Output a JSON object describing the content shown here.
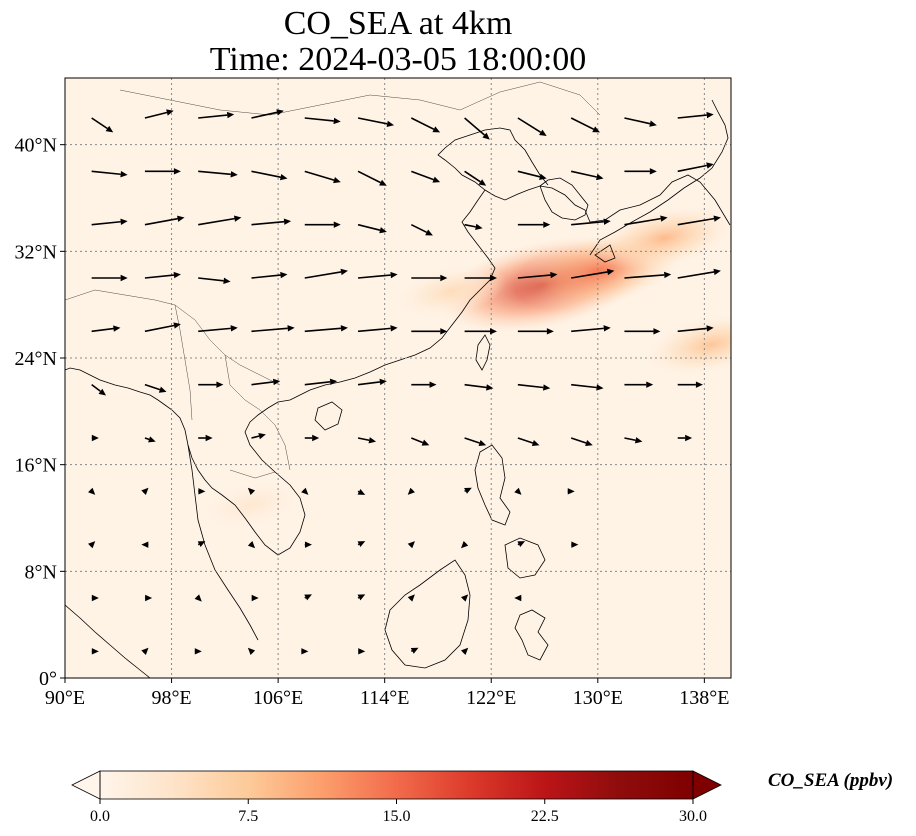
{
  "title": {
    "line1": "CO_SEA at 4km",
    "line2": "Time: 2024-03-05 18:00:00"
  },
  "map": {
    "extent": {
      "lon_min": 90,
      "lon_max": 140,
      "lat_min": 0,
      "lat_max": 45
    },
    "x_ticks": [
      {
        "lon": 90,
        "label": "90°E"
      },
      {
        "lon": 98,
        "label": "98°E"
      },
      {
        "lon": 106,
        "label": "106°E"
      },
      {
        "lon": 114,
        "label": "114°E"
      },
      {
        "lon": 122,
        "label": "122°E"
      },
      {
        "lon": 130,
        "label": "130°E"
      },
      {
        "lon": 138,
        "label": "138°E"
      }
    ],
    "y_ticks": [
      {
        "lat": 0,
        "label": "0°"
      },
      {
        "lat": 8,
        "label": "8°N"
      },
      {
        "lat": 16,
        "label": "16°N"
      },
      {
        "lat": 24,
        "label": "24°N"
      },
      {
        "lat": 32,
        "label": "32°N"
      },
      {
        "lat": 40,
        "label": "40°N"
      }
    ],
    "gridlines": true,
    "field": {
      "background_value": 0.5,
      "plumes": [
        {
          "lon": 126,
          "lat": 29.5,
          "value": 21
        },
        {
          "lon": 130,
          "lat": 30.5,
          "value": 14
        },
        {
          "lon": 135,
          "lat": 33,
          "value": 9
        },
        {
          "lon": 138.5,
          "lat": 25,
          "value": 8
        },
        {
          "lon": 119,
          "lat": 29,
          "value": 5
        },
        {
          "lon": 104,
          "lat": 13,
          "value": 3
        }
      ]
    },
    "wind_vectors": [
      {
        "lon": 92,
        "lat": 42,
        "u": 6,
        "v": -4
      },
      {
        "lon": 96,
        "lat": 42,
        "u": 8,
        "v": 2
      },
      {
        "lon": 100,
        "lat": 42,
        "u": 10,
        "v": 1
      },
      {
        "lon": 104,
        "lat": 42,
        "u": 9,
        "v": 2
      },
      {
        "lon": 108,
        "lat": 42,
        "u": 10,
        "v": -1
      },
      {
        "lon": 112,
        "lat": 42,
        "u": 10,
        "v": -2
      },
      {
        "lon": 116,
        "lat": 42,
        "u": 8,
        "v": -4
      },
      {
        "lon": 120,
        "lat": 42,
        "u": 7,
        "v": -6
      },
      {
        "lon": 124,
        "lat": 42,
        "u": 8,
        "v": -5
      },
      {
        "lon": 128,
        "lat": 42,
        "u": 8,
        "v": -4
      },
      {
        "lon": 132,
        "lat": 42,
        "u": 9,
        "v": -2
      },
      {
        "lon": 136,
        "lat": 42,
        "u": 10,
        "v": 1
      },
      {
        "lon": 92,
        "lat": 38,
        "u": 10,
        "v": -1
      },
      {
        "lon": 96,
        "lat": 38,
        "u": 10,
        "v": 0
      },
      {
        "lon": 100,
        "lat": 38,
        "u": 11,
        "v": -1
      },
      {
        "lon": 104,
        "lat": 38,
        "u": 10,
        "v": -2
      },
      {
        "lon": 108,
        "lat": 38,
        "u": 10,
        "v": -3
      },
      {
        "lon": 112,
        "lat": 38,
        "u": 8,
        "v": -4
      },
      {
        "lon": 116,
        "lat": 38,
        "u": 8,
        "v": -3
      },
      {
        "lon": 120,
        "lat": 38,
        "u": 6,
        "v": -4
      },
      {
        "lon": 124,
        "lat": 38,
        "u": 8,
        "v": -2
      },
      {
        "lon": 128,
        "lat": 38,
        "u": 9,
        "v": -2
      },
      {
        "lon": 132,
        "lat": 38,
        "u": 9,
        "v": 0
      },
      {
        "lon": 136,
        "lat": 38,
        "u": 10,
        "v": 2
      },
      {
        "lon": 92,
        "lat": 34,
        "u": 10,
        "v": 1
      },
      {
        "lon": 96,
        "lat": 34,
        "u": 11,
        "v": 2
      },
      {
        "lon": 100,
        "lat": 34,
        "u": 12,
        "v": 2
      },
      {
        "lon": 104,
        "lat": 34,
        "u": 11,
        "v": 1
      },
      {
        "lon": 108,
        "lat": 34,
        "u": 10,
        "v": 0
      },
      {
        "lon": 112,
        "lat": 34,
        "u": 8,
        "v": -2
      },
      {
        "lon": 116,
        "lat": 34,
        "u": 6,
        "v": -3
      },
      {
        "lon": 120,
        "lat": 34,
        "u": 5,
        "v": -1
      },
      {
        "lon": 124,
        "lat": 34,
        "u": 9,
        "v": 0
      },
      {
        "lon": 128,
        "lat": 34,
        "u": 11,
        "v": 1
      },
      {
        "lon": 132,
        "lat": 34,
        "u": 12,
        "v": 2
      },
      {
        "lon": 136,
        "lat": 34,
        "u": 12,
        "v": 2
      },
      {
        "lon": 92,
        "lat": 30,
        "u": 10,
        "v": 0
      },
      {
        "lon": 96,
        "lat": 30,
        "u": 10,
        "v": 1
      },
      {
        "lon": 100,
        "lat": 30,
        "u": 9,
        "v": -1
      },
      {
        "lon": 104,
        "lat": 30,
        "u": 10,
        "v": 1
      },
      {
        "lon": 108,
        "lat": 30,
        "u": 12,
        "v": 2
      },
      {
        "lon": 112,
        "lat": 30,
        "u": 11,
        "v": 1
      },
      {
        "lon": 116,
        "lat": 30,
        "u": 10,
        "v": 0
      },
      {
        "lon": 120,
        "lat": 30,
        "u": 9,
        "v": 0
      },
      {
        "lon": 124,
        "lat": 30,
        "u": 11,
        "v": 1
      },
      {
        "lon": 128,
        "lat": 30,
        "u": 12,
        "v": 2
      },
      {
        "lon": 132,
        "lat": 30,
        "u": 13,
        "v": 1
      },
      {
        "lon": 136,
        "lat": 30,
        "u": 12,
        "v": 2
      },
      {
        "lon": 92,
        "lat": 26,
        "u": 8,
        "v": 1
      },
      {
        "lon": 96,
        "lat": 26,
        "u": 10,
        "v": 2
      },
      {
        "lon": 100,
        "lat": 26,
        "u": 11,
        "v": 1
      },
      {
        "lon": 104,
        "lat": 26,
        "u": 12,
        "v": 1
      },
      {
        "lon": 108,
        "lat": 26,
        "u": 12,
        "v": 1
      },
      {
        "lon": 112,
        "lat": 26,
        "u": 11,
        "v": 1
      },
      {
        "lon": 116,
        "lat": 26,
        "u": 10,
        "v": 0
      },
      {
        "lon": 120,
        "lat": 26,
        "u": 9,
        "v": 0
      },
      {
        "lon": 124,
        "lat": 26,
        "u": 10,
        "v": 0
      },
      {
        "lon": 128,
        "lat": 26,
        "u": 11,
        "v": 1
      },
      {
        "lon": 132,
        "lat": 26,
        "u": 10,
        "v": 0
      },
      {
        "lon": 136,
        "lat": 26,
        "u": 10,
        "v": 1
      },
      {
        "lon": 92,
        "lat": 22,
        "u": 4,
        "v": -3
      },
      {
        "lon": 96,
        "lat": 22,
        "u": 6,
        "v": -2
      },
      {
        "lon": 100,
        "lat": 22,
        "u": 7,
        "v": 0
      },
      {
        "lon": 104,
        "lat": 22,
        "u": 8,
        "v": 1
      },
      {
        "lon": 108,
        "lat": 22,
        "u": 9,
        "v": 1
      },
      {
        "lon": 112,
        "lat": 22,
        "u": 8,
        "v": 1
      },
      {
        "lon": 116,
        "lat": 22,
        "u": 7,
        "v": 0
      },
      {
        "lon": 120,
        "lat": 22,
        "u": 8,
        "v": -1
      },
      {
        "lon": 124,
        "lat": 22,
        "u": 9,
        "v": -1
      },
      {
        "lon": 128,
        "lat": 22,
        "u": 9,
        "v": -1
      },
      {
        "lon": 132,
        "lat": 22,
        "u": 8,
        "v": 0
      },
      {
        "lon": 136,
        "lat": 22,
        "u": 7,
        "v": 0
      },
      {
        "lon": 92,
        "lat": 18,
        "u": 2,
        "v": 0
      },
      {
        "lon": 96,
        "lat": 18,
        "u": 3,
        "v": -1
      },
      {
        "lon": 100,
        "lat": 18,
        "u": 4,
        "v": 0
      },
      {
        "lon": 104,
        "lat": 18,
        "u": 4,
        "v": 1
      },
      {
        "lon": 108,
        "lat": 18,
        "u": 4,
        "v": 0
      },
      {
        "lon": 112,
        "lat": 18,
        "u": 5,
        "v": -1
      },
      {
        "lon": 116,
        "lat": 18,
        "u": 5,
        "v": -2
      },
      {
        "lon": 120,
        "lat": 18,
        "u": 6,
        "v": -2
      },
      {
        "lon": 124,
        "lat": 18,
        "u": 6,
        "v": -2
      },
      {
        "lon": 128,
        "lat": 18,
        "u": 6,
        "v": -2
      },
      {
        "lon": 132,
        "lat": 18,
        "u": 5,
        "v": -1
      },
      {
        "lon": 136,
        "lat": 18,
        "u": 4,
        "v": 0
      },
      {
        "lon": 92,
        "lat": 14,
        "u": 1,
        "v": -1
      },
      {
        "lon": 96,
        "lat": 14,
        "u": 1,
        "v": 1
      },
      {
        "lon": 100,
        "lat": 14,
        "u": 2,
        "v": 0
      },
      {
        "lon": 104,
        "lat": 14,
        "u": -1,
        "v": 1
      },
      {
        "lon": 108,
        "lat": 14,
        "u": 1,
        "v": -1
      },
      {
        "lon": 112,
        "lat": 14,
        "u": 2,
        "v": -1
      },
      {
        "lon": 116,
        "lat": 14,
        "u": -1,
        "v": -1
      },
      {
        "lon": 120,
        "lat": 14,
        "u": 2,
        "v": 1
      },
      {
        "lon": 124,
        "lat": 14,
        "u": 1,
        "v": -1
      },
      {
        "lon": 128,
        "lat": 14,
        "u": 1,
        "v": 0
      },
      {
        "lon": 92,
        "lat": 10,
        "u": 1,
        "v": 1
      },
      {
        "lon": 96,
        "lat": 10,
        "u": -1,
        "v": 0
      },
      {
        "lon": 100,
        "lat": 10,
        "u": 2,
        "v": 1
      },
      {
        "lon": 104,
        "lat": 10,
        "u": 1,
        "v": -1
      },
      {
        "lon": 108,
        "lat": 10,
        "u": 2,
        "v": 0
      },
      {
        "lon": 112,
        "lat": 10,
        "u": 2,
        "v": 1
      },
      {
        "lon": 116,
        "lat": 10,
        "u": 1,
        "v": 1
      },
      {
        "lon": 120,
        "lat": 10,
        "u": -1,
        "v": -1
      },
      {
        "lon": 124,
        "lat": 10,
        "u": 2,
        "v": 1
      },
      {
        "lon": 128,
        "lat": 10,
        "u": 2,
        "v": 0
      },
      {
        "lon": 92,
        "lat": 6,
        "u": 2,
        "v": 0
      },
      {
        "lon": 96,
        "lat": 6,
        "u": 2,
        "v": 0
      },
      {
        "lon": 100,
        "lat": 6,
        "u": 1,
        "v": -1
      },
      {
        "lon": 104,
        "lat": 6,
        "u": 2,
        "v": 0
      },
      {
        "lon": 108,
        "lat": 6,
        "u": 2,
        "v": 1
      },
      {
        "lon": 112,
        "lat": 6,
        "u": 2,
        "v": 1
      },
      {
        "lon": 116,
        "lat": 6,
        "u": 1,
        "v": 1
      },
      {
        "lon": 120,
        "lat": 6,
        "u": 1,
        "v": 1
      },
      {
        "lon": 124,
        "lat": 6,
        "u": -1,
        "v": 0
      },
      {
        "lon": 92,
        "lat": 2,
        "u": 2,
        "v": 0
      },
      {
        "lon": 96,
        "lat": 2,
        "u": 1,
        "v": 1
      },
      {
        "lon": 100,
        "lat": 2,
        "u": 1,
        "v": 0
      },
      {
        "lon": 104,
        "lat": 2,
        "u": -1,
        "v": 1
      },
      {
        "lon": 108,
        "lat": 2,
        "u": 1,
        "v": 0
      },
      {
        "lon": 112,
        "lat": 2,
        "u": 2,
        "v": 0
      },
      {
        "lon": 116,
        "lat": 2,
        "u": 2,
        "v": 1
      },
      {
        "lon": 120,
        "lat": 2,
        "u": 1,
        "v": 1
      }
    ]
  },
  "colorbar": {
    "label": "CO_SEA (ppbv)",
    "min": 0,
    "max": 30,
    "ticks": [
      {
        "value": 0,
        "label": "0.0"
      },
      {
        "value": 7.5,
        "label": "7.5"
      },
      {
        "value": 15,
        "label": "15.0"
      },
      {
        "value": 22.5,
        "label": "22.5"
      },
      {
        "value": 30,
        "label": "30.0"
      }
    ],
    "colors": [
      "#fff5eb",
      "#fee6ce",
      "#fdd0a2",
      "#fdae6b",
      "#fd8d3c",
      "#f16913",
      "#d94801",
      "#a63603",
      "#7f2704"
    ],
    "cmap_stops": [
      "#fff5eb",
      "#fee3c8",
      "#fdca99",
      "#fc9e6c",
      "#f26b4b",
      "#dc3a2b",
      "#bb1517",
      "#8f0c0c",
      "#7f0000"
    ]
  },
  "colors": {
    "coastline": "#000000",
    "gridline": "#888888",
    "arrow": "#000000"
  }
}
